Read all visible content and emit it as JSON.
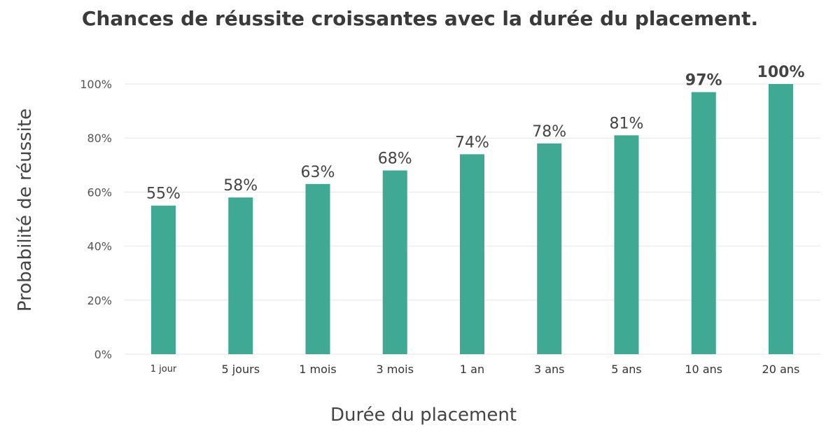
{
  "chart_data": {
    "type": "bar",
    "title": "Chances de réussite croissantes avec la durée du placement.",
    "xlabel": "Durée du placement",
    "ylabel": "Probabilité de réussite",
    "categories": [
      "1 jour",
      "5 jours",
      "1 mois",
      "3 mois",
      "1 an",
      "3 ans",
      "5 ans",
      "10 ans",
      "20 ans"
    ],
    "values": [
      55,
      58,
      63,
      68,
      74,
      78,
      81,
      97,
      100
    ],
    "data_labels": [
      "55%",
      "58%",
      "63%",
      "68%",
      "74%",
      "78%",
      "81%",
      "97%",
      "100%"
    ],
    "yticks": [
      "0%",
      "20%",
      "40%",
      "60%",
      "80%",
      "100%"
    ],
    "ytick_values": [
      0,
      20,
      40,
      60,
      80,
      100
    ],
    "ylim": [
      0,
      100
    ],
    "grid": true,
    "legend": "none",
    "colors": {
      "bar": "#3fa994",
      "grid": "#e6e6e6",
      "text": "#444444"
    }
  }
}
